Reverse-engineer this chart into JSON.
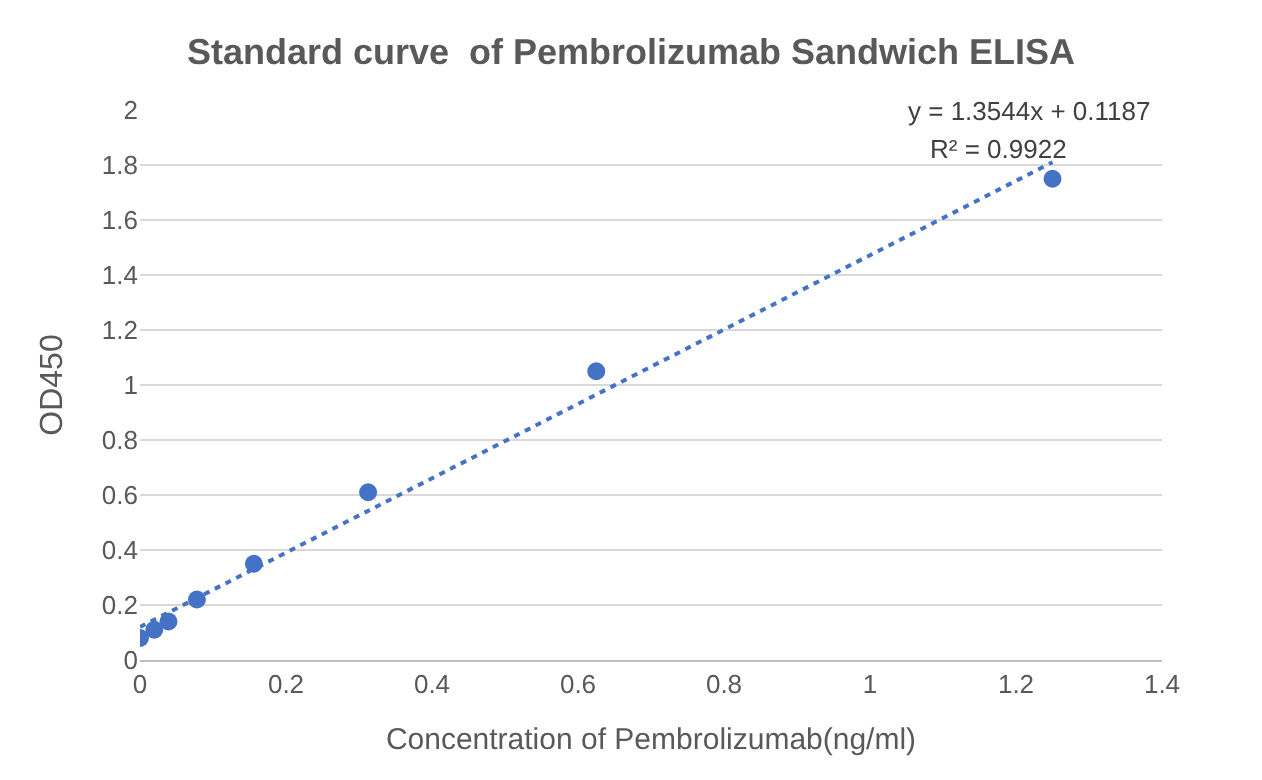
{
  "chart_data": {
    "type": "scatter",
    "title": "Standard curve  of Pembrolizumab Sandwich ELISA",
    "xlabel": "Concentration of Pembrolizumab(ng/ml)",
    "ylabel": "OD450",
    "series": [
      {
        "color": "#4472c4",
        "x": [
          0,
          0.0195,
          0.039,
          0.078,
          0.156,
          0.3125,
          0.625,
          1.25
        ],
        "values": [
          0.08,
          0.11,
          0.14,
          0.22,
          0.35,
          0.61,
          1.05,
          1.75
        ],
        "marker": "circle"
      },
      {
        "type": "line",
        "color": "#4472c4",
        "x": [
          0,
          1.25
        ],
        "values": [
          0.12,
          1.81
        ],
        "line_style": "dotted",
        "marker": "none"
      }
    ],
    "annotations": [
      "y = 1.3544x + 0.1187",
      "R² = 0.9922"
    ],
    "xlim": [
      0,
      1.4
    ],
    "xticks": [
      0,
      0.2,
      0.4,
      0.6,
      0.8,
      1,
      1.2,
      1.4
    ],
    "ylim": [
      0,
      2
    ],
    "yticks": [
      0,
      0.2,
      0.4,
      0.6,
      0.8,
      1,
      1.2,
      1.4,
      1.6,
      1.8,
      2
    ],
    "grid": "y"
  }
}
